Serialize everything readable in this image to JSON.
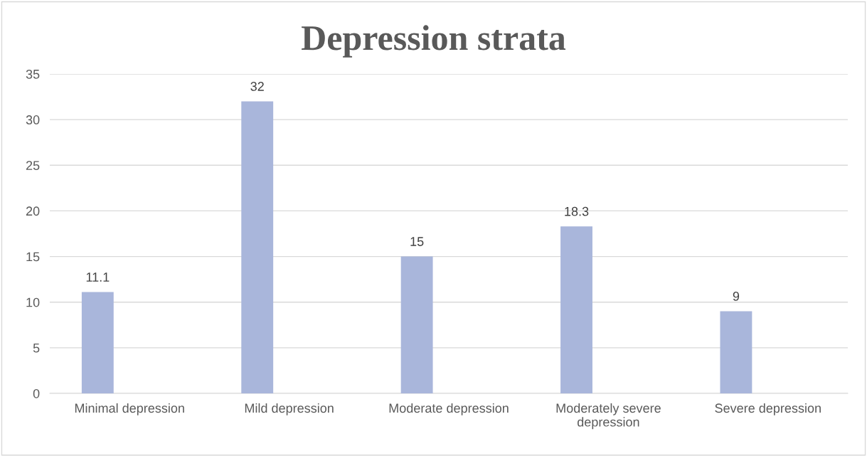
{
  "chart_data": {
    "type": "bar",
    "title": "Depression strata",
    "categories": [
      "Minimal depression",
      "Mild depression",
      "Moderate depression",
      "Moderately severe depression",
      "Severe depression"
    ],
    "values": [
      11.1,
      32,
      15,
      18.3,
      9
    ],
    "color": "#a9b6db",
    "ylim": [
      0,
      35
    ],
    "yticks": [
      0,
      5,
      10,
      15,
      20,
      25,
      30,
      35
    ],
    "grid": "y",
    "data_labels": true
  }
}
